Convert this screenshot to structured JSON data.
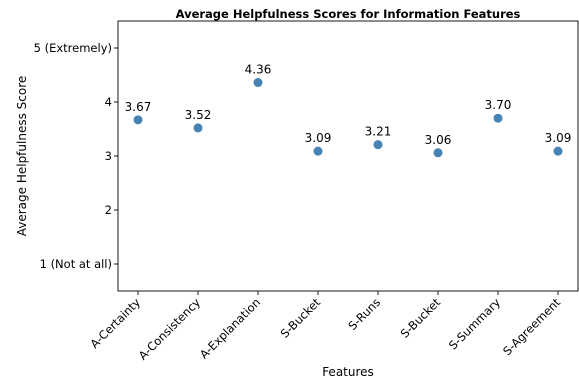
{
  "chart_data": {
    "type": "scatter",
    "title": "Average Helpfulness Scores for Information Features",
    "xlabel": "Features",
    "ylabel": "Average Helpfulness Score",
    "categories": [
      "A-Certainty",
      "A-Consistency",
      "A-Explanation",
      "S-Bucket",
      "S-Runs",
      "S-Bucket",
      "S-Summary",
      "S-Agreement"
    ],
    "values": [
      3.67,
      3.52,
      4.36,
      3.09,
      3.21,
      3.06,
      3.7,
      3.09
    ],
    "value_labels": [
      "3.67",
      "3.52",
      "4.36",
      "3.09",
      "3.21",
      "3.06",
      "3.70",
      "3.09"
    ],
    "ylim": [
      0.5,
      5.5
    ],
    "yticks": [
      1,
      2,
      3,
      4,
      5
    ],
    "ytick_labels": [
      "1 (Not at all)",
      "2",
      "3",
      "4",
      "5 (Extremely)"
    ],
    "grid": false,
    "marker_color": "#4682b4"
  }
}
